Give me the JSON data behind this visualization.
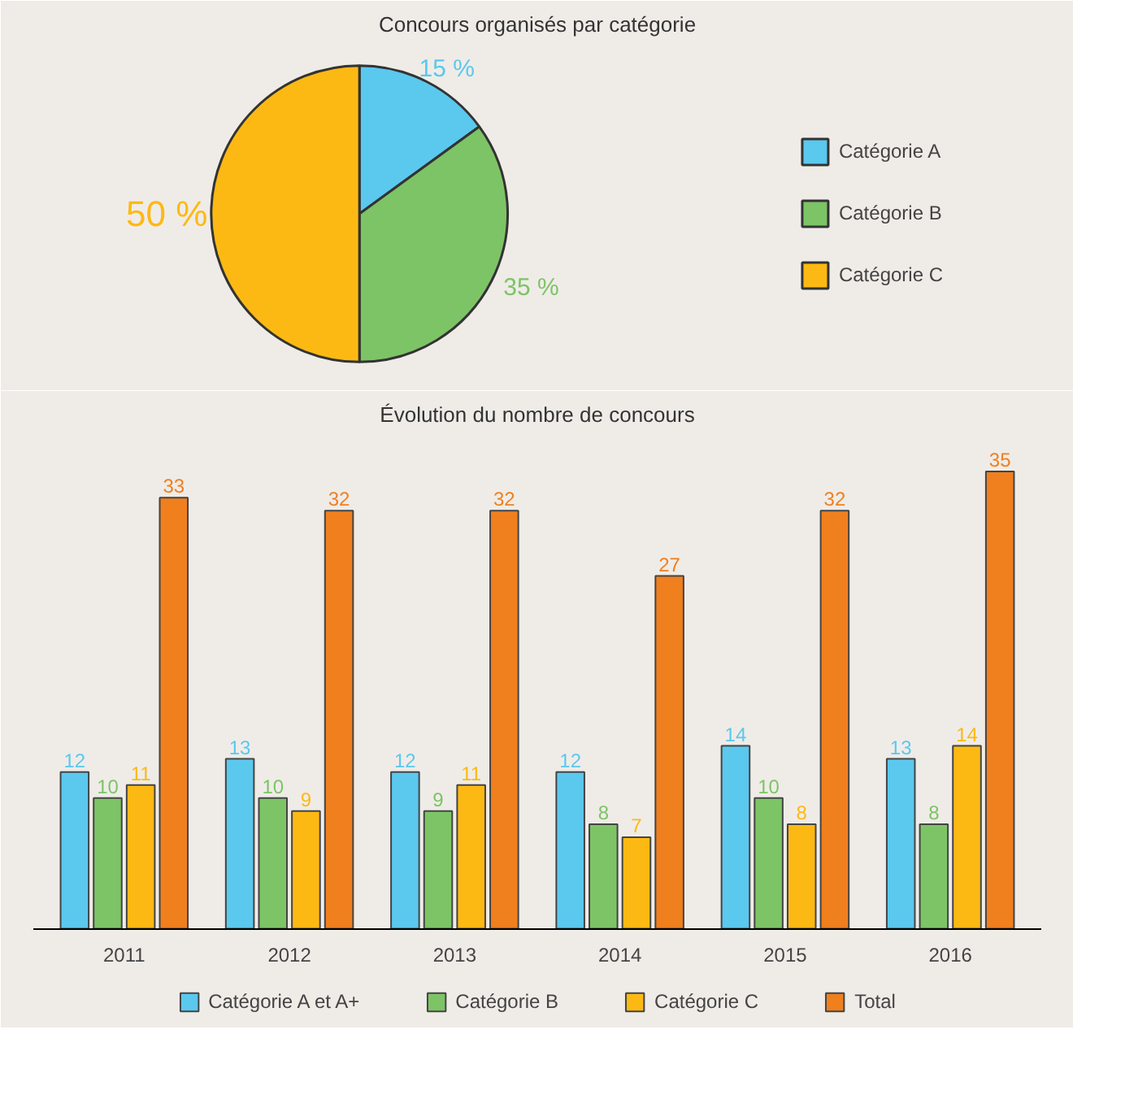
{
  "chart_data": [
    {
      "type": "pie",
      "title": "Concours organisés par catégorie",
      "categories": [
        "Catégorie A",
        "Catégorie B",
        "Catégorie C"
      ],
      "values": [
        15,
        35,
        50
      ],
      "colors": [
        "#5bc8ee",
        "#7dc466",
        "#fdb913"
      ],
      "value_labels": [
        "15 %",
        "35 %",
        "50 %"
      ],
      "legend": "right"
    },
    {
      "type": "bar",
      "title": "Évolution du nombre de concours",
      "categories": [
        "2011",
        "2012",
        "2013",
        "2014",
        "2015",
        "2016"
      ],
      "series": [
        {
          "name": "Catégorie A et A+",
          "color": "#5bc8ee",
          "values": [
            12,
            13,
            12,
            12,
            14,
            13
          ]
        },
        {
          "name": "Catégorie B",
          "color": "#7dc466",
          "values": [
            10,
            10,
            9,
            8,
            10,
            8
          ]
        },
        {
          "name": "Catégorie C",
          "color": "#fdb913",
          "values": [
            11,
            9,
            11,
            7,
            8,
            14
          ]
        },
        {
          "name": "Total",
          "color": "#f07f1e",
          "values": [
            33,
            32,
            32,
            27,
            32,
            35
          ]
        }
      ],
      "data_labels": true,
      "legend": "bottom",
      "tick_labels": "x",
      "grid": false
    }
  ]
}
